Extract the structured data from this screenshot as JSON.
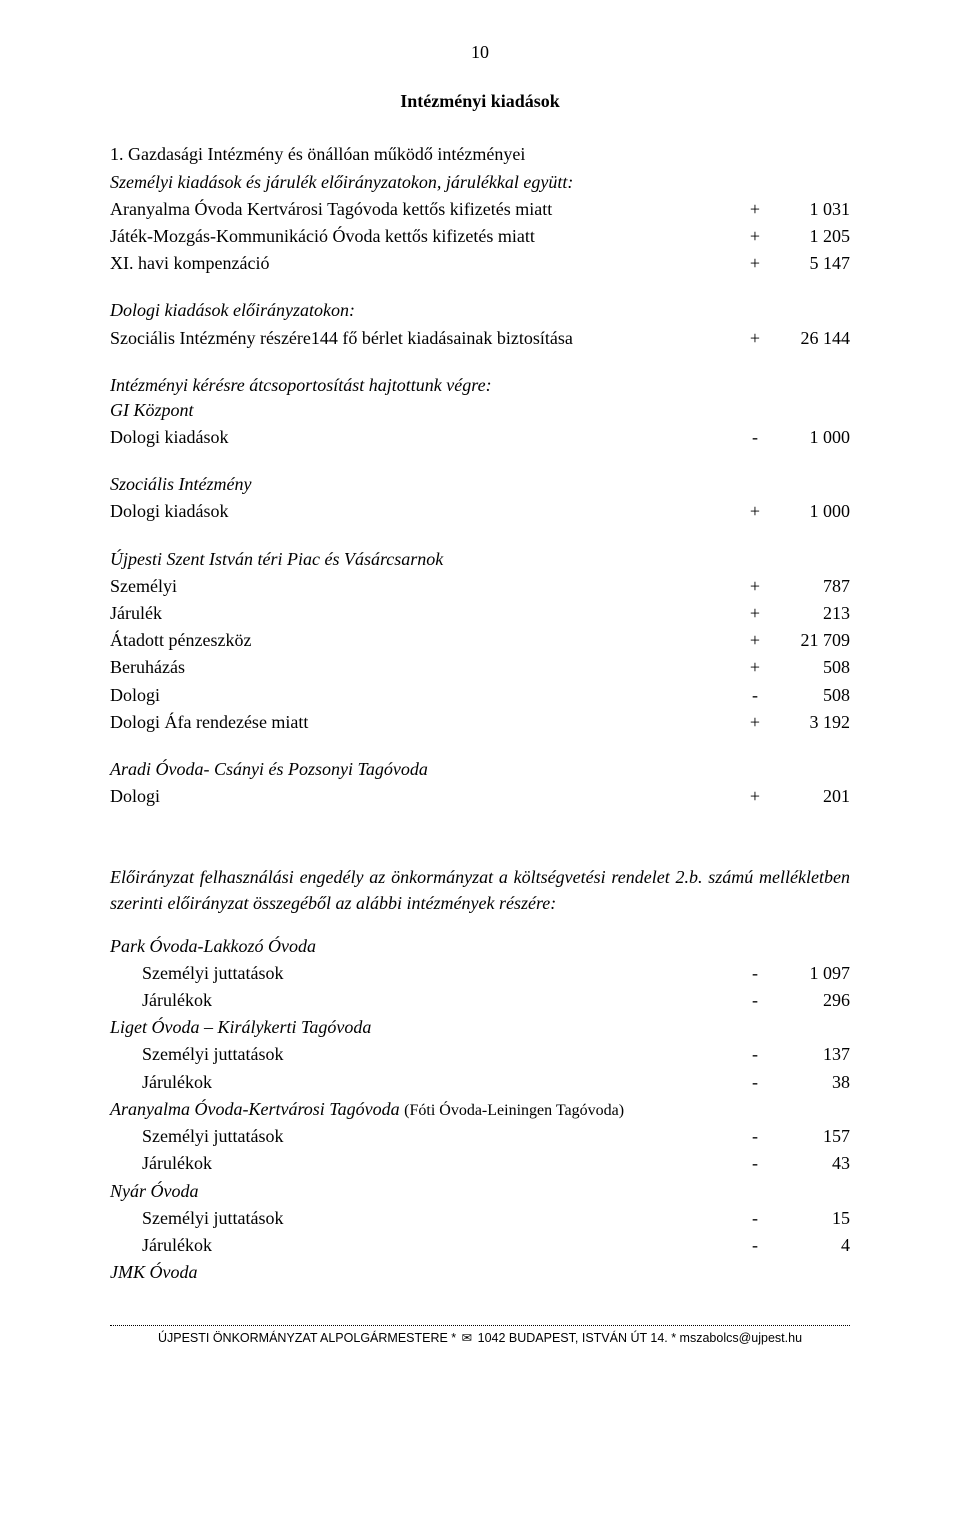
{
  "pageNumber": "10",
  "title": "Intézményi kiadások",
  "numberedTitle": "1. Gazdasági Intézmény és önállóan működő intézményei",
  "subheadings": {
    "personal": "Személyi kiadások és járulék előirányzatokon, járulékkal együtt:",
    "material": "Dologi kiadások előirányzatokon:",
    "regroup": "Intézményi kérésre átcsoportosítást hajtottunk végre:"
  },
  "rows": {
    "aranyalma": {
      "label": "Aranyalma Óvoda Kertvárosi Tagóvoda kettős kifizetés miatt",
      "sign": "+",
      "val": "1 031"
    },
    "jatek": {
      "label": "Játék-Mozgás-Kommunikáció Óvoda kettős kifizetés miatt",
      "sign": "+",
      "val": "1 205"
    },
    "komp": {
      "label": "XI. havi kompenzáció",
      "sign": "+",
      "val": "5 147"
    },
    "berlet": {
      "label": "Szociális Intézmény részére144 fő bérlet kiadásainak biztosítása",
      "sign": "+",
      "val": "26 144"
    }
  },
  "groups": {
    "gi": {
      "name": "GI Központ",
      "dologi": {
        "label": "Dologi kiadások",
        "sign": "-",
        "val": "1 000"
      }
    },
    "szoc": {
      "name": "Szociális Intézmény",
      "dologi": {
        "label": "Dologi kiadások",
        "sign": "+",
        "val": "1 000"
      }
    },
    "piac": {
      "name": "Újpesti Szent István téri Piac és Vásárcsarnok",
      "szemelyi": {
        "label": "Személyi",
        "sign": "+",
        "val": "787"
      },
      "jarulek": {
        "label": "Járulék",
        "sign": "+",
        "val": "213"
      },
      "atadott": {
        "label": "Átadott pénzeszköz",
        "sign": "+",
        "val": "21 709"
      },
      "beruhazas": {
        "label": "Beruházás",
        "sign": "+",
        "val": "508"
      },
      "dologi": {
        "label": "Dologi",
        "sign": "-",
        "val": "508"
      },
      "afa": {
        "label": "Dologi Áfa rendezése miatt",
        "sign": "+",
        "val": "3 192"
      }
    },
    "aradi": {
      "name": "Aradi Óvoda- Csányi és Pozsonyi Tagóvoda",
      "dologi": {
        "label": "Dologi",
        "sign": "+",
        "val": "201"
      }
    }
  },
  "paragraph": "Előirányzat felhasználási engedély az önkormányzat a költségvetési rendelet 2.b. számú mellékletben szerinti előirányzat összegéből az alábbi intézmények részére:",
  "inst": {
    "park": {
      "name": "Park Óvoda-Lakkozó Óvoda",
      "sz": {
        "label": "Személyi juttatások",
        "sign": "-",
        "val": "1 097"
      },
      "ja": {
        "label": "Járulékok",
        "sign": "-",
        "val": "296"
      }
    },
    "liget": {
      "name": "Liget Óvoda – Királykerti Tagóvoda",
      "sz": {
        "label": "Személyi juttatások",
        "sign": "-",
        "val": "137"
      },
      "ja": {
        "label": "Járulékok",
        "sign": "-",
        "val": "38"
      }
    },
    "aranyalma": {
      "name": "Aranyalma Óvoda-Kertvárosi Tagóvoda ",
      "note": "(Fóti Óvoda-Leiningen Tagóvoda)",
      "sz": {
        "label": "Személyi juttatások",
        "sign": "-",
        "val": "157"
      },
      "ja": {
        "label": "Járulékok",
        "sign": "-",
        "val": "43"
      }
    },
    "nyar": {
      "name": "Nyár Óvoda",
      "sz": {
        "label": "Személyi juttatások",
        "sign": "-",
        "val": "15"
      },
      "ja": {
        "label": "Járulékok",
        "sign": "-",
        "val": "4"
      }
    },
    "jmk": {
      "name": "JMK Óvoda"
    }
  },
  "footer": {
    "left": "ÚJPESTI ÖNKORMÁNYZAT ALPOLGÁRMESTERE *",
    "envelope": "✉",
    "mid": " 1042 BUDAPEST, ISTVÁN ÚT 14. * mszabolcs@ujpest.hu"
  }
}
